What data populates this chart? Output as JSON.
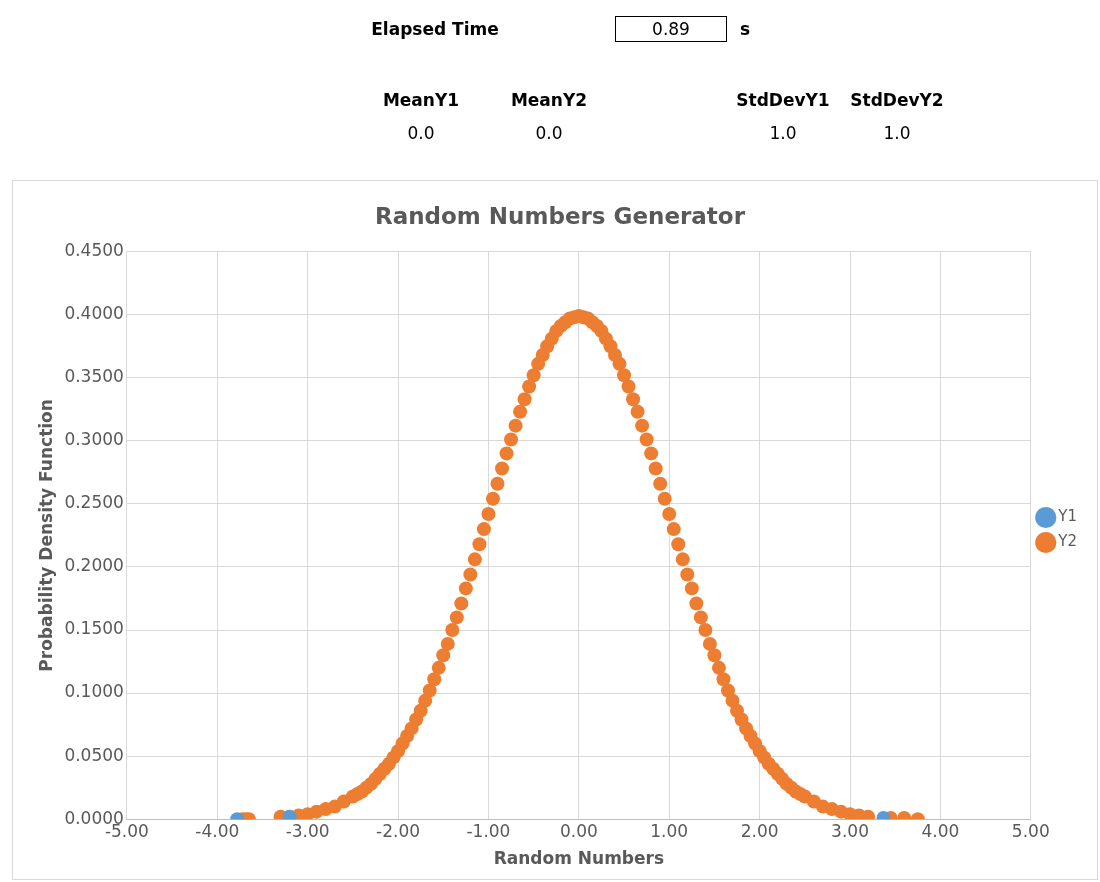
{
  "chart_data": [
    {
      "type": "other",
      "annotations": [
        "Elapsed Time",
        "0.89",
        "s",
        "MeanY1",
        "MeanY2",
        "StdDevY1",
        "StdDevY2",
        "0.0",
        "0.0",
        "1.0",
        "1.0"
      ]
    },
    {
      "type": "scatter",
      "title": "Random Numbers Generator",
      "xlabel": "Random Numbers",
      "ylabel": "Probability Density Function",
      "xlim": [
        -5,
        5
      ],
      "xticks": [
        {
          "value": -5,
          "label": "-5.00"
        },
        {
          "value": -4,
          "label": "-4.00"
        },
        {
          "value": -3,
          "label": "-3.00"
        },
        {
          "value": -2,
          "label": "-2.00"
        },
        {
          "value": -1,
          "label": "-1.00"
        },
        {
          "value": 0,
          "label": "0.00"
        },
        {
          "value": 1,
          "label": "1.00"
        },
        {
          "value": 2,
          "label": "2.00"
        },
        {
          "value": 3,
          "label": "3.00"
        },
        {
          "value": 4,
          "label": "4.00"
        },
        {
          "value": 5,
          "label": "5.00"
        }
      ],
      "ylim": [
        0,
        0.45
      ],
      "yticks": [
        {
          "value": 0,
          "label": "0.0000"
        },
        {
          "value": 0.05,
          "label": "0.0500"
        },
        {
          "value": 0.1,
          "label": "0.1000"
        },
        {
          "value": 0.15,
          "label": "0.1500"
        },
        {
          "value": 0.2,
          "label": "0.2000"
        },
        {
          "value": 0.25,
          "label": "0.2500"
        },
        {
          "value": 0.3,
          "label": "0.3000"
        },
        {
          "value": 0.35,
          "label": "0.3500"
        },
        {
          "value": 0.4,
          "label": "0.4000"
        },
        {
          "value": 0.45,
          "label": "0.4500"
        }
      ],
      "grid": true,
      "legend": "right",
      "marker": "circle",
      "series": [
        {
          "name": "Y1",
          "color": "#5b9bd5",
          "x": [
            -3.78,
            -3.2,
            3.37
          ],
          "values": [
            0.0,
            0.002,
            0.001
          ]
        },
        {
          "name": "Y2",
          "color": "#ed7d31",
          "x": [
            -3.72,
            -3.68,
            -3.65,
            -3.3,
            -3.2,
            -3.1,
            -3.0,
            -2.9,
            -2.8,
            -2.7,
            -2.6,
            -2.5,
            -2.45,
            -2.4,
            -2.35,
            -2.3,
            -2.25,
            -2.2,
            -2.15,
            -2.1,
            -2.05,
            -2.0,
            -1.95,
            -1.9,
            -1.85,
            -1.8,
            -1.75,
            -1.7,
            -1.65,
            -1.6,
            -1.55,
            -1.5,
            -1.45,
            -1.4,
            -1.35,
            -1.3,
            -1.25,
            -1.2,
            -1.15,
            -1.1,
            -1.05,
            -1.0,
            -0.95,
            -0.9,
            -0.85,
            -0.8,
            -0.75,
            -0.7,
            -0.65,
            -0.6,
            -0.55,
            -0.5,
            -0.45,
            -0.4,
            -0.35,
            -0.3,
            -0.25,
            -0.2,
            -0.15,
            -0.1,
            -0.05,
            0.0,
            0.05,
            0.1,
            0.15,
            0.2,
            0.25,
            0.3,
            0.35,
            0.4,
            0.45,
            0.5,
            0.55,
            0.6,
            0.65,
            0.7,
            0.75,
            0.8,
            0.85,
            0.9,
            0.95,
            1.0,
            1.05,
            1.1,
            1.15,
            1.2,
            1.25,
            1.3,
            1.35,
            1.4,
            1.45,
            1.5,
            1.55,
            1.6,
            1.65,
            1.7,
            1.75,
            1.8,
            1.85,
            1.9,
            1.95,
            2.0,
            2.05,
            2.1,
            2.15,
            2.2,
            2.25,
            2.3,
            2.35,
            2.4,
            2.45,
            2.5,
            2.6,
            2.7,
            2.8,
            2.9,
            3.0,
            3.1,
            3.2,
            3.45,
            3.6,
            3.75
          ],
          "values": [
            0.0,
            0.0,
            0.0,
            0.002,
            0.002,
            0.003,
            0.004,
            0.006,
            0.008,
            0.01,
            0.014,
            0.018,
            0.02,
            0.022,
            0.025,
            0.028,
            0.032,
            0.036,
            0.04,
            0.044,
            0.049,
            0.054,
            0.06,
            0.066,
            0.072,
            0.079,
            0.086,
            0.094,
            0.102,
            0.111,
            0.12,
            0.13,
            0.139,
            0.15,
            0.16,
            0.171,
            0.183,
            0.194,
            0.206,
            0.218,
            0.23,
            0.242,
            0.254,
            0.266,
            0.278,
            0.29,
            0.301,
            0.312,
            0.323,
            0.333,
            0.343,
            0.352,
            0.361,
            0.368,
            0.375,
            0.381,
            0.387,
            0.391,
            0.394,
            0.397,
            0.398,
            0.399,
            0.398,
            0.397,
            0.394,
            0.391,
            0.387,
            0.381,
            0.375,
            0.368,
            0.361,
            0.352,
            0.343,
            0.333,
            0.323,
            0.312,
            0.301,
            0.29,
            0.278,
            0.266,
            0.254,
            0.242,
            0.23,
            0.218,
            0.206,
            0.194,
            0.183,
            0.171,
            0.16,
            0.15,
            0.139,
            0.13,
            0.12,
            0.111,
            0.102,
            0.094,
            0.086,
            0.079,
            0.072,
            0.066,
            0.06,
            0.054,
            0.049,
            0.044,
            0.04,
            0.036,
            0.032,
            0.028,
            0.025,
            0.022,
            0.02,
            0.018,
            0.014,
            0.01,
            0.008,
            0.006,
            0.004,
            0.003,
            0.002,
            0.001,
            0.001,
            0.0
          ]
        }
      ]
    }
  ]
}
